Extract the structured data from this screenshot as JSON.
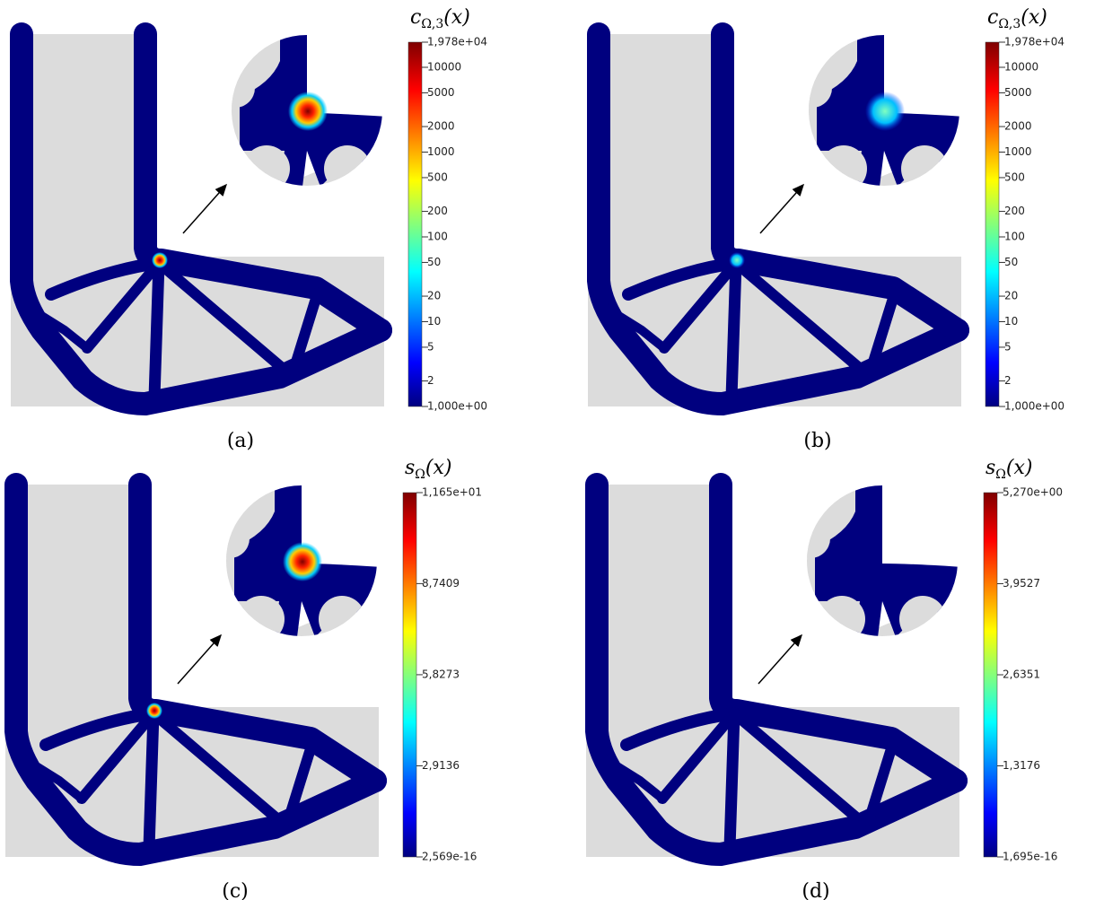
{
  "panels": [
    {
      "caption": "(a)",
      "colorbar": {
        "title": {
          "symbol": "c",
          "subscript": "Ω,3",
          "arg": "(x)"
        },
        "scale": "log",
        "range": [
          1,
          19780
        ],
        "ticks": [
          {
            "value": 19780,
            "label": "1,978e+04"
          },
          10000,
          5000,
          2000,
          1000,
          500,
          200,
          100,
          50,
          20,
          10,
          5,
          2,
          {
            "value": 1,
            "label": "1,000e+00"
          }
        ]
      }
    },
    {
      "caption": "(b)",
      "colorbar": {
        "title": {
          "symbol": "c",
          "subscript": "Ω,3",
          "arg": "(x)"
        },
        "scale": "log",
        "range": [
          1,
          19780
        ],
        "ticks": [
          {
            "value": 19780,
            "label": "1,978e+04"
          },
          10000,
          5000,
          2000,
          1000,
          500,
          200,
          100,
          50,
          20,
          10,
          5,
          2,
          {
            "value": 1,
            "label": "1,000e+00"
          }
        ]
      }
    },
    {
      "caption": "(c)",
      "colorbar": {
        "title": {
          "symbol": "s",
          "subscript": "Ω",
          "arg": "(x)"
        },
        "scale": "linear",
        "range": [
          2.569e-16,
          11.65
        ],
        "ticks": [
          {
            "value": 11.65,
            "label": "1,165e+01"
          },
          {
            "value": 8.7409,
            "label": "8,7409"
          },
          {
            "value": 5.8273,
            "label": "5,8273"
          },
          {
            "value": 2.9136,
            "label": "2,9136"
          },
          {
            "value": 2.569e-16,
            "label": "2,569e-16"
          }
        ]
      }
    },
    {
      "caption": "(d)",
      "colorbar": {
        "title": {
          "symbol": "s",
          "subscript": "Ω",
          "arg": "(x)"
        },
        "scale": "linear",
        "range": [
          1.695e-16,
          5.27
        ],
        "ticks": [
          {
            "value": 5.27,
            "label": "5,270e+00"
          },
          {
            "value": 3.9527,
            "label": "3,9527"
          },
          {
            "value": 2.6351,
            "label": "2,6351"
          },
          {
            "value": 1.3176,
            "label": "1,3176"
          },
          {
            "value": 1.695e-16,
            "label": "1,695e-16"
          }
        ]
      }
    }
  ]
}
